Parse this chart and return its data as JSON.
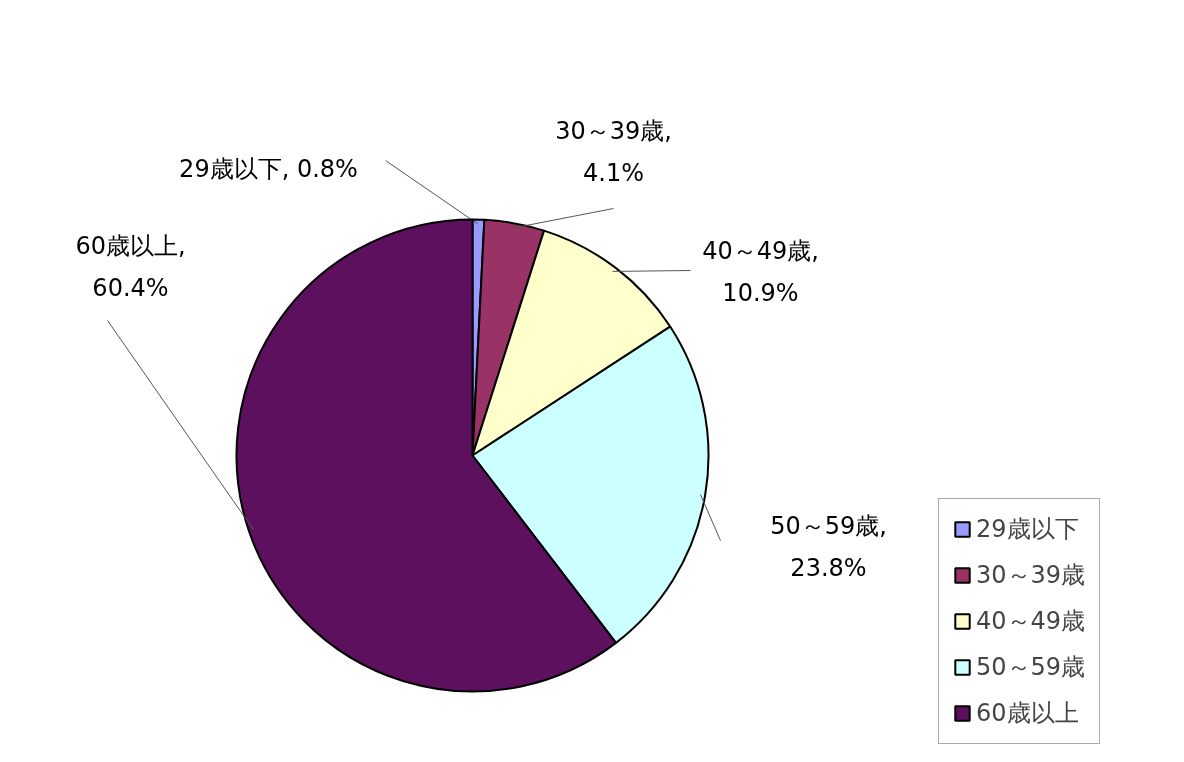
{
  "chart_data": {
    "type": "pie",
    "categories": [
      "29歳以下",
      "30～39歳",
      "40～49歳",
      "50～59歳",
      "60歳以上"
    ],
    "values": [
      0.8,
      4.1,
      10.9,
      23.8,
      60.4
    ],
    "value_labels": [
      "29歳以下, 0.8%",
      "30～39歳,\n4.1%",
      "40～49歳,\n10.9%",
      "50～59歳,\n23.8%",
      "60歳以上,\n60.4%"
    ],
    "colors": [
      "#9999ff",
      "#993366",
      "#ffffcc",
      "#ccffff",
      "#5c105e"
    ],
    "legend": "right"
  }
}
